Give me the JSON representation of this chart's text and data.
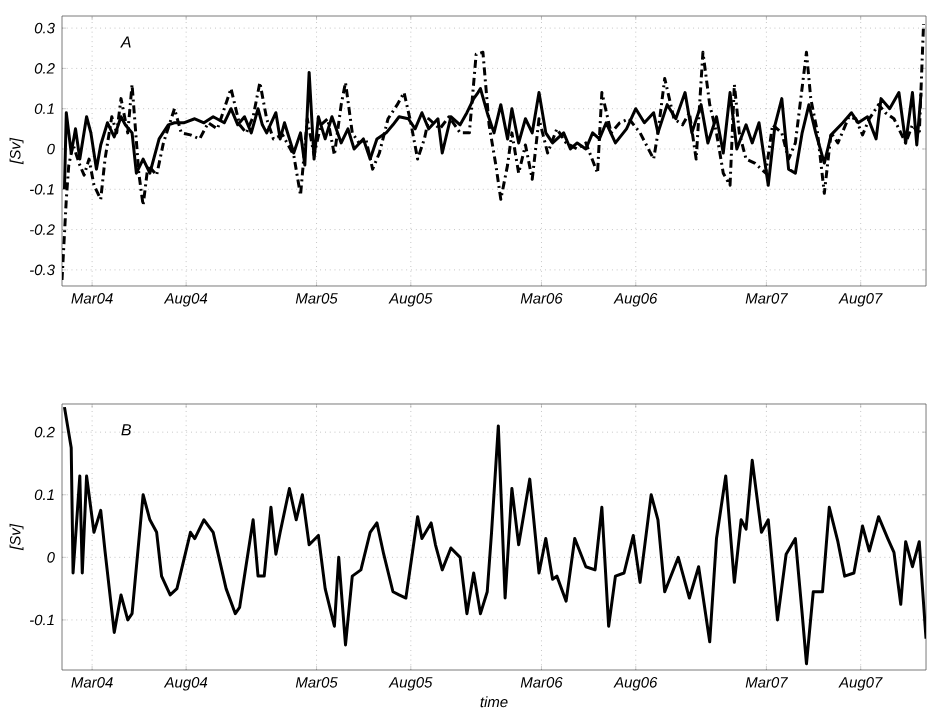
{
  "chart_data": [
    {
      "type": "line",
      "ylabel": "[Sv]",
      "annotations": [
        "A"
      ],
      "grid": true,
      "xlim": [
        "2004-01-12",
        "2007-11-15"
      ],
      "ylim": [
        -0.34,
        0.33
      ],
      "xticks": [
        {
          "value": "2004-03-01",
          "label": "Mar04"
        },
        {
          "value": "2004-08-01",
          "label": "Aug04"
        },
        {
          "value": "2005-03-01",
          "label": "Mar05"
        },
        {
          "value": "2005-08-01",
          "label": "Aug05"
        },
        {
          "value": "2006-03-01",
          "label": "Mar06"
        },
        {
          "value": "2006-08-01",
          "label": "Aug06"
        },
        {
          "value": "2007-03-01",
          "label": "Mar07"
        },
        {
          "value": "2007-08-01",
          "label": "Aug07"
        }
      ],
      "yticks": [
        -0.3,
        -0.2,
        -0.1,
        0,
        0.1,
        0.2,
        0.3
      ],
      "series": [
        {
          "color": "#000000",
          "line_style": "solid",
          "x": [
            "2004-01-16",
            "2004-01-19",
            "2004-01-27",
            "2004-02-03",
            "2004-02-10",
            "2004-02-21",
            "2004-02-28",
            "2004-03-08",
            "2004-03-15",
            "2004-03-26",
            "2004-04-06",
            "2004-04-17",
            "2004-04-24",
            "2004-05-05",
            "2004-05-12",
            "2004-05-23",
            "2004-06-03",
            "2004-06-18",
            "2004-07-03",
            "2004-07-13",
            "2004-07-28",
            "2004-08-15",
            "2004-08-30",
            "2004-09-14",
            "2004-10-02",
            "2004-10-13",
            "2004-10-24",
            "2004-11-04",
            "2004-11-15",
            "2004-11-26",
            "2004-12-03",
            "2004-12-10",
            "2004-12-25",
            "2005-01-01",
            "2005-01-08",
            "2005-01-23",
            "2005-02-03",
            "2005-02-10",
            "2005-02-17",
            "2005-02-25",
            "2005-03-04",
            "2005-03-15",
            "2005-03-26",
            "2005-04-10",
            "2005-04-21",
            "2005-05-01",
            "2005-05-16",
            "2005-05-27",
            "2005-06-07",
            "2005-06-22",
            "2005-07-03",
            "2005-07-13",
            "2005-07-28",
            "2005-08-08",
            "2005-08-19",
            "2005-08-30",
            "2005-09-14",
            "2005-09-21",
            "2005-10-05",
            "2005-10-20",
            "2005-10-31",
            "2005-11-11",
            "2005-11-18",
            "2005-11-22",
            "2005-12-03",
            "2005-12-14",
            "2005-12-25",
            "2006-01-05",
            "2006-01-12",
            "2006-01-23",
            "2006-02-03",
            "2006-02-14",
            "2006-02-25",
            "2006-03-08",
            "2006-03-19",
            "2006-04-06",
            "2006-04-17",
            "2006-04-28",
            "2006-05-12",
            "2006-05-23",
            "2006-06-03",
            "2006-06-14",
            "2006-06-29",
            "2006-07-17",
            "2006-08-01",
            "2006-08-15",
            "2006-08-30",
            "2006-09-06",
            "2006-09-21",
            "2006-10-05",
            "2006-10-20",
            "2006-10-31",
            "2006-11-15",
            "2006-11-26",
            "2006-12-10",
            "2006-12-21",
            "2007-01-01",
            "2007-01-12",
            "2007-01-27",
            "2007-02-06",
            "2007-02-17",
            "2007-03-04",
            "2007-03-15",
            "2007-03-26",
            "2007-04-06",
            "2007-04-17",
            "2007-04-28",
            "2007-05-09",
            "2007-05-20",
            "2007-06-03",
            "2007-06-14",
            "2007-07-03",
            "2007-07-17",
            "2007-07-28",
            "2007-08-12",
            "2007-08-26",
            "2007-09-03",
            "2007-09-17",
            "2007-10-02",
            "2007-10-13",
            "2007-10-24",
            "2007-10-31",
            "2007-11-07"
          ],
          "values": [
            -0.1,
            0.09,
            -0.01,
            0.05,
            -0.025,
            0.08,
            0.04,
            -0.05,
            0.01,
            0.065,
            0.03,
            0.08,
            0.06,
            0.04,
            -0.06,
            -0.025,
            -0.06,
            0.025,
            0.06,
            0.065,
            0.065,
            0.075,
            0.065,
            0.08,
            0.065,
            0.1,
            0.06,
            0.08,
            0.04,
            0.1,
            0.06,
            0.04,
            0.09,
            0.025,
            0.065,
            -0.01,
            0.04,
            -0.04,
            0.19,
            -0.025,
            0.08,
            0.025,
            0.08,
            0.015,
            0.05,
            0,
            0.025,
            -0.025,
            0.025,
            0.04,
            0.06,
            0.08,
            0.075,
            0.05,
            0.09,
            0.05,
            0.075,
            -0.01,
            0.08,
            0.06,
            0.09,
            0.125,
            0.14,
            0.15,
            0.09,
            0.04,
            0.11,
            0.025,
            0.1,
            0.015,
            0.075,
            0.04,
            0.14,
            0.04,
            0.015,
            0.04,
            0,
            0.015,
            0,
            0.04,
            0.025,
            0.065,
            0.015,
            0.05,
            0.1,
            0.065,
            0.09,
            0.04,
            0.11,
            0.075,
            0.14,
            0.04,
            0.11,
            0.015,
            0.08,
            -0.01,
            0.14,
            0,
            0.06,
            0.015,
            0.065,
            -0.09,
            0.06,
            0.125,
            -0.05,
            -0.06,
            0.04,
            0.11,
            0.04,
            -0.035,
            0.035,
            0.065,
            0.09,
            0.065,
            0.08,
            0.025,
            0.125,
            0.1,
            0.14,
            0.015,
            0.14,
            0.01,
            0.14
          ]
        },
        {
          "color": "#000000",
          "line_style": "dashed",
          "x": [
            "2004-01-12",
            "2004-01-19",
            "2004-01-23",
            "2004-01-30",
            "2004-02-10",
            "2004-02-17",
            "2004-02-25",
            "2004-03-04",
            "2004-03-15",
            "2004-03-22",
            "2004-04-02",
            "2004-04-10",
            "2004-04-17",
            "2004-04-28",
            "2004-05-05",
            "2004-05-16",
            "2004-05-23",
            "2004-05-31",
            "2004-06-14",
            "2004-06-25",
            "2004-07-13",
            "2004-07-24",
            "2004-08-08",
            "2004-08-23",
            "2004-09-06",
            "2004-09-21",
            "2004-10-02",
            "2004-10-13",
            "2004-10-27",
            "2004-11-07",
            "2004-11-18",
            "2004-11-29",
            "2004-12-10",
            "2004-12-21",
            "2005-01-05",
            "2005-01-23",
            "2005-02-03",
            "2005-02-14",
            "2005-02-25",
            "2005-03-08",
            "2005-03-19",
            "2005-03-30",
            "2005-04-10",
            "2005-04-17",
            "2005-04-28",
            "2005-05-09",
            "2005-05-20",
            "2005-05-31",
            "2005-06-11",
            "2005-06-25",
            "2005-07-10",
            "2005-07-21",
            "2005-08-01",
            "2005-08-12",
            "2005-08-23",
            "2005-08-30",
            "2005-09-17",
            "2005-10-02",
            "2005-10-20",
            "2005-11-04",
            "2005-11-15",
            "2005-11-26",
            "2005-12-06",
            "2005-12-17",
            "2005-12-25",
            "2006-01-05",
            "2006-01-12",
            "2006-01-23",
            "2006-02-03",
            "2006-02-14",
            "2006-02-25",
            "2006-03-11",
            "2006-03-26",
            "2006-04-10",
            "2006-04-28",
            "2006-05-12",
            "2006-05-31",
            "2006-06-07",
            "2006-06-22",
            "2006-07-06",
            "2006-07-21",
            "2006-08-08",
            "2006-08-30",
            "2006-09-06",
            "2006-09-17",
            "2006-10-02",
            "2006-10-16",
            "2006-10-27",
            "2006-11-07",
            "2006-11-18",
            "2006-11-29",
            "2006-12-10",
            "2006-12-21",
            "2007-01-01",
            "2007-01-08",
            "2007-01-16",
            "2007-01-27",
            "2007-02-10",
            "2007-02-28",
            "2007-03-11",
            "2007-03-26",
            "2007-04-06",
            "2007-04-17",
            "2007-05-05",
            "2007-05-12",
            "2007-05-23",
            "2007-06-03",
            "2007-06-14",
            "2007-06-25",
            "2007-07-13",
            "2007-07-24",
            "2007-08-04",
            "2007-08-15",
            "2007-08-30",
            "2007-09-10",
            "2007-09-24",
            "2007-10-13",
            "2007-10-24",
            "2007-11-04",
            "2007-11-11"
          ],
          "values": [
            -0.325,
            -0.125,
            -0.04,
            0.01,
            -0.04,
            -0.065,
            -0.025,
            -0.09,
            -0.125,
            -0.025,
            0.08,
            0.04,
            0.125,
            0.04,
            0.16,
            -0.06,
            -0.14,
            -0.04,
            -0.065,
            0.015,
            0.1,
            0.04,
            0.035,
            0.025,
            0.065,
            0.05,
            0.1,
            0.15,
            0.06,
            0.04,
            0.08,
            0.165,
            0.075,
            0.025,
            0.035,
            -0.015,
            -0.115,
            0.075,
            -0.015,
            0.06,
            0.075,
            -0.015,
            0.11,
            0.165,
            0.04,
            0.015,
            0.025,
            -0.05,
            -0.01,
            0.075,
            0.11,
            0.14,
            0.065,
            -0.025,
            0.025,
            0.075,
            0.05,
            0.08,
            0.04,
            0.04,
            0.235,
            0.24,
            0.06,
            -0.04,
            -0.125,
            -0.04,
            0.04,
            -0.06,
            0.01,
            -0.075,
            0.075,
            -0.01,
            0.05,
            0.015,
            0,
            0.015,
            -0.06,
            0.14,
            0.04,
            0.065,
            0.075,
            0.04,
            -0.025,
            0.04,
            0.175,
            0.075,
            0.06,
            0.09,
            -0.025,
            0.24,
            0.11,
            0.04,
            -0.06,
            -0.09,
            0.16,
            0.04,
            -0.025,
            -0.035,
            -0.06,
            0.06,
            0.04,
            -0.025,
            0.015,
            0.24,
            0.125,
            0.04,
            -0.11,
            0.04,
            0.015,
            0.08,
            0.075,
            0.035,
            0.075,
            0.11,
            0.09,
            0.075,
            0.015,
            0.06,
            0.035,
            0.31
          ]
        }
      ]
    },
    {
      "type": "line",
      "ylabel": "[Sv]",
      "xlabel": "time",
      "annotations": [
        "B"
      ],
      "grid": true,
      "xlim": [
        "2004-01-12",
        "2007-11-15"
      ],
      "ylim": [
        -0.18,
        0.245
      ],
      "xticks": [
        {
          "value": "2004-03-01",
          "label": "Mar04"
        },
        {
          "value": "2004-08-01",
          "label": "Aug04"
        },
        {
          "value": "2005-03-01",
          "label": "Mar05"
        },
        {
          "value": "2005-08-01",
          "label": "Aug05"
        },
        {
          "value": "2006-03-01",
          "label": "Mar06"
        },
        {
          "value": "2006-08-01",
          "label": "Aug06"
        },
        {
          "value": "2007-03-01",
          "label": "Mar07"
        },
        {
          "value": "2007-08-01",
          "label": "Aug07"
        }
      ],
      "yticks": [
        -0.1,
        0,
        0.1,
        0.2
      ],
      "series": [
        {
          "color": "#000000",
          "line_style": "solid",
          "x": [
            "2004-01-16",
            "2004-01-27",
            "2004-01-30",
            "2004-02-10",
            "2004-02-14",
            "2004-02-21",
            "2004-03-04",
            "2004-03-15",
            "2004-03-22",
            "2004-04-06",
            "2004-04-17",
            "2004-04-28",
            "2004-05-05",
            "2004-05-23",
            "2004-06-03",
            "2004-06-14",
            "2004-06-22",
            "2004-07-06",
            "2004-07-17",
            "2004-08-08",
            "2004-08-15",
            "2004-08-30",
            "2004-09-14",
            "2004-10-05",
            "2004-10-20",
            "2004-10-27",
            "2004-11-18",
            "2004-11-26",
            "2004-12-06",
            "2004-12-17",
            "2004-12-25",
            "2005-01-01",
            "2005-01-16",
            "2005-01-27",
            "2005-02-06",
            "2005-02-17",
            "2005-03-04",
            "2005-03-15",
            "2005-03-30",
            "2005-04-06",
            "2005-04-17",
            "2005-04-28",
            "2005-05-12",
            "2005-05-27",
            "2005-06-07",
            "2005-06-18",
            "2005-07-03",
            "2005-07-13",
            "2005-07-24",
            "2005-08-12",
            "2005-08-19",
            "2005-09-03",
            "2005-09-10",
            "2005-09-21",
            "2005-10-05",
            "2005-10-20",
            "2005-10-31",
            "2005-11-11",
            "2005-11-22",
            "2005-12-03",
            "2005-12-10",
            "2005-12-21",
            "2006-01-01",
            "2006-01-12",
            "2006-01-23",
            "2006-02-10",
            "2006-02-25",
            "2006-03-08",
            "2006-03-19",
            "2006-03-26",
            "2006-04-10",
            "2006-04-24",
            "2006-05-12",
            "2006-05-27",
            "2006-06-07",
            "2006-06-18",
            "2006-06-29",
            "2006-07-13",
            "2006-07-28",
            "2006-08-08",
            "2006-08-26",
            "2006-09-06",
            "2006-09-17",
            "2006-10-09",
            "2006-10-27",
            "2006-11-11",
            "2006-11-29",
            "2006-12-10",
            "2006-12-25",
            "2007-01-08",
            "2007-01-19",
            "2007-01-27",
            "2007-02-06",
            "2007-02-21",
            "2007-03-04",
            "2007-03-19",
            "2007-04-02",
            "2007-04-17",
            "2007-04-28",
            "2007-05-05",
            "2007-05-16",
            "2007-05-31",
            "2007-06-11",
            "2007-06-25",
            "2007-07-06",
            "2007-07-21",
            "2007-08-04",
            "2007-08-15",
            "2007-08-30",
            "2007-09-14",
            "2007-09-24",
            "2007-10-05",
            "2007-10-13",
            "2007-10-24",
            "2007-11-04",
            "2007-11-15"
          ],
          "values": [
            0.24,
            0.175,
            -0.025,
            0.13,
            -0.025,
            0.13,
            0.04,
            0.075,
            0.01,
            -0.12,
            -0.06,
            -0.1,
            -0.09,
            0.1,
            0.06,
            0.04,
            -0.03,
            -0.06,
            -0.05,
            0.04,
            0.03,
            0.06,
            0.04,
            -0.05,
            -0.09,
            -0.08,
            0.06,
            -0.03,
            -0.03,
            0.08,
            0.005,
            0.04,
            0.11,
            0.06,
            0.1,
            0.02,
            0.035,
            -0.05,
            -0.11,
            0.0,
            -0.14,
            -0.03,
            -0.02,
            0.04,
            0.055,
            0.005,
            -0.055,
            -0.06,
            -0.065,
            0.065,
            0.03,
            0.055,
            0.02,
            -0.02,
            0.015,
            0.0,
            -0.09,
            -0.025,
            -0.09,
            -0.055,
            0.04,
            0.21,
            -0.065,
            0.11,
            0.02,
            0.125,
            -0.025,
            0.03,
            -0.035,
            -0.03,
            -0.07,
            0.03,
            -0.015,
            -0.02,
            0.08,
            -0.11,
            -0.03,
            -0.025,
            0.035,
            -0.04,
            0.1,
            0.06,
            -0.055,
            0,
            -0.065,
            -0.015,
            -0.135,
            0.03,
            0.13,
            -0.04,
            0.06,
            0.045,
            0.155,
            0.04,
            0.06,
            -0.1,
            0.005,
            0.03,
            -0.09,
            -0.17,
            -0.055,
            -0.055,
            0.08,
            0.025,
            -0.03,
            -0.025,
            0.05,
            0.01,
            0.065,
            0.03,
            0.008,
            -0.075,
            0.025,
            -0.015,
            0.025,
            -0.13
          ]
        }
      ]
    }
  ]
}
